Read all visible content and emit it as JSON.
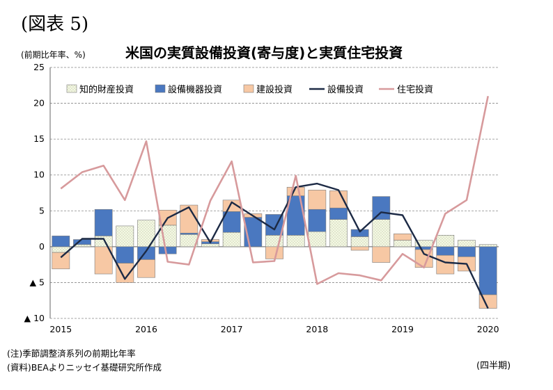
{
  "figure_label": "(図表 5)",
  "unit_label": "(前期比年率、%)",
  "notes": [
    "(注)季節調整済系列の前期比年率",
    "(資料)BEAよりニッセイ基礎研究所作成"
  ],
  "frequency_label": "(四半期)",
  "colors": {
    "ip": "#f4f8e4",
    "equipment": "#4a78c0",
    "structures": "#f7c8a4",
    "total_line": "#1c2a45",
    "residential_line": "#d79a9c",
    "grid": "#888888"
  },
  "chart_data": {
    "type": "bar",
    "title": "米国の実質設備投資(寄与度)と実質住宅投資",
    "xlabel": "",
    "ylabel": "(前期比年率、%)",
    "ylim": [
      -10,
      25
    ],
    "yticks": [
      {
        "value": 25,
        "label": "25"
      },
      {
        "value": 20,
        "label": "20"
      },
      {
        "value": 15,
        "label": "15"
      },
      {
        "value": 10,
        "label": "10"
      },
      {
        "value": 5,
        "label": "5"
      },
      {
        "value": 0,
        "label": "0"
      },
      {
        "value": -5,
        "label": "▲ 5"
      },
      {
        "value": -10,
        "label": "▲ 10"
      }
    ],
    "year_ticks": [
      {
        "index": 0,
        "label": "2015"
      },
      {
        "index": 4,
        "label": "2016"
      },
      {
        "index": 8,
        "label": "2017"
      },
      {
        "index": 12,
        "label": "2018"
      },
      {
        "index": 16,
        "label": "2019"
      },
      {
        "index": 20,
        "label": "2020"
      }
    ],
    "categories": [
      "2015Q1",
      "2015Q2",
      "2015Q3",
      "2015Q4",
      "2016Q1",
      "2016Q2",
      "2016Q3",
      "2016Q4",
      "2017Q1",
      "2017Q2",
      "2017Q3",
      "2017Q4",
      "2018Q1",
      "2018Q2",
      "2018Q3",
      "2018Q4",
      "2019Q1",
      "2019Q2",
      "2019Q3",
      "2019Q4",
      "2020Q1"
    ],
    "grid": true,
    "legend_position": "top",
    "series": [
      {
        "name": "知的財産投資",
        "kind": "bar",
        "color_key": "ip",
        "values": [
          -0.8,
          0.3,
          1.5,
          2.9,
          3.7,
          3.0,
          1.7,
          0.4,
          2.0,
          0.0,
          1.6,
          1.6,
          2.1,
          3.8,
          1.4,
          3.8,
          0.9,
          0.9,
          1.6,
          0.9,
          0.3
        ]
      },
      {
        "name": "設備機器投資",
        "kind": "bar",
        "color_key": "equipment",
        "values": [
          1.5,
          0.7,
          3.7,
          -2.3,
          -1.8,
          -1.0,
          0.2,
          0.3,
          2.9,
          4.1,
          2.9,
          5.5,
          3.1,
          1.6,
          1.0,
          3.2,
          0.0,
          -0.4,
          -1.2,
          -1.4,
          -6.7
        ]
      },
      {
        "name": "建設投資",
        "kind": "bar",
        "color_key": "structures",
        "values": [
          -2.3,
          0.0,
          -3.8,
          -2.7,
          -2.5,
          2.1,
          3.9,
          0.3,
          1.6,
          0.5,
          -1.7,
          1.2,
          2.7,
          2.4,
          -0.5,
          -2.2,
          0.9,
          -2.5,
          -2.6,
          -2.0,
          -1.9
        ]
      },
      {
        "name": "設備投資",
        "kind": "line",
        "color_key": "total_line",
        "values": [
          -1.5,
          1.1,
          1.1,
          -4.5,
          -0.6,
          4.0,
          5.5,
          0.6,
          6.2,
          4.3,
          2.4,
          8.3,
          8.8,
          7.9,
          2.1,
          4.8,
          4.4,
          -1.0,
          -2.2,
          -2.4,
          -8.6
        ]
      },
      {
        "name": "住宅投資",
        "kind": "line",
        "color_key": "residential_line",
        "values": [
          8.1,
          10.4,
          11.3,
          6.5,
          14.7,
          -2.1,
          -2.5,
          6.4,
          11.9,
          -2.2,
          -2.0,
          9.9,
          -5.2,
          -3.7,
          -4.0,
          -4.7,
          -1.0,
          -2.9,
          4.6,
          6.5,
          21.0
        ]
      }
    ]
  }
}
